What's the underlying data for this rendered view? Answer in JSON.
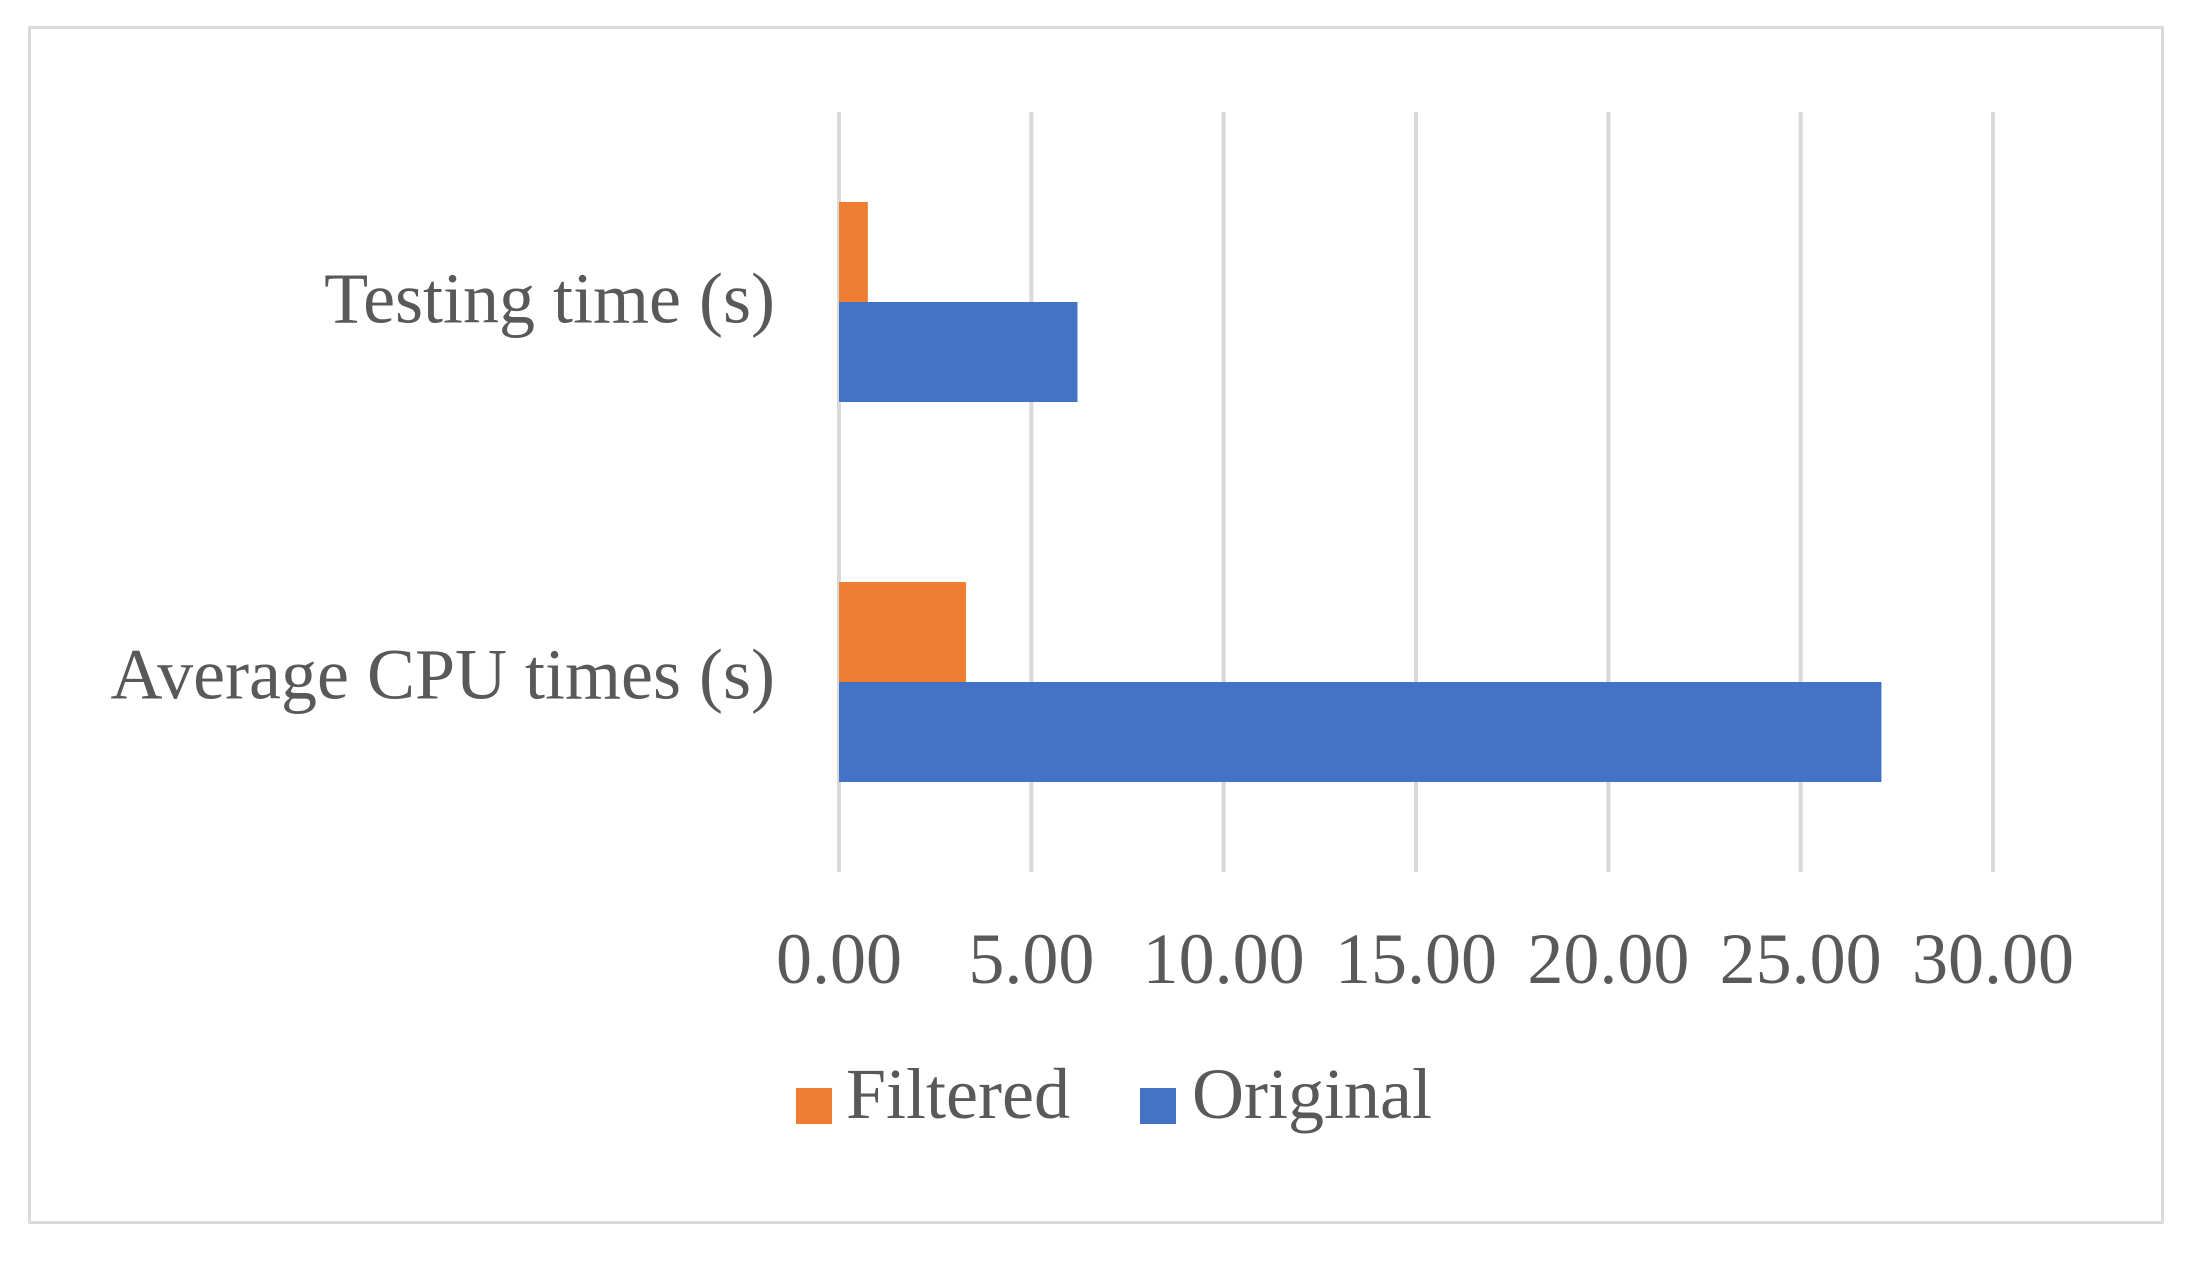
{
  "chart_data": {
    "type": "bar",
    "orientation": "horizontal",
    "categories": [
      "Testing time (s)",
      "Average CPU times (s)"
    ],
    "series": [
      {
        "name": "Filtered",
        "color": "#ed7d31",
        "values": [
          0.75,
          3.3
        ]
      },
      {
        "name": "Original",
        "color": "#4472c4",
        "values": [
          6.2,
          27.1
        ]
      }
    ],
    "x_ticks": [
      "0.00",
      "5.00",
      "10.00",
      "15.00",
      "20.00",
      "25.00",
      "30.00"
    ],
    "xlim": [
      0,
      30
    ],
    "grid": "vertical",
    "legend_position": "bottom",
    "title": "",
    "xlabel": "",
    "ylabel": ""
  },
  "colors": {
    "gridline": "#d9d9d9",
    "text": "#595959"
  }
}
